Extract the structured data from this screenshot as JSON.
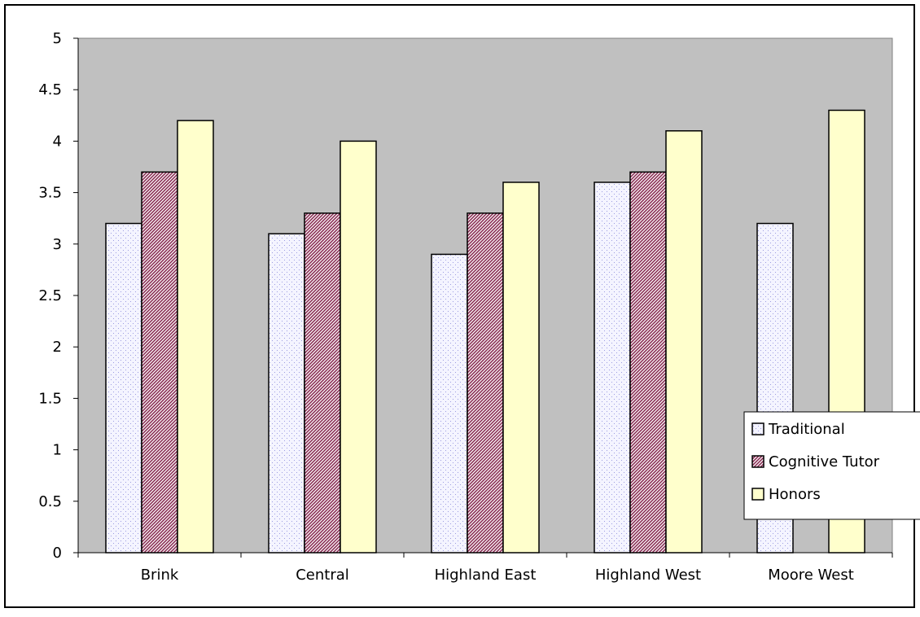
{
  "chart_data": {
    "type": "bar",
    "title": "",
    "xlabel": "",
    "ylabel": "",
    "categories": [
      "Brink",
      "Central",
      "Highland East",
      "Highland West",
      "Moore West"
    ],
    "series": [
      {
        "name": "Traditional",
        "values": [
          3.2,
          3.1,
          2.9,
          3.6,
          3.2
        ],
        "pattern": "dots",
        "color": "#f4f4ff",
        "pattern_color": "#9c9ce0"
      },
      {
        "name": "Cognitive Tutor",
        "values": [
          3.7,
          3.3,
          3.3,
          3.7,
          null
        ],
        "pattern": "diagonal-stripes",
        "color": "#ffffff",
        "pattern_color": "#8a2e55"
      },
      {
        "name": "Honors",
        "values": [
          4.2,
          4.0,
          3.6,
          4.1,
          4.3
        ],
        "pattern": "solid",
        "color": "#ffffcc",
        "pattern_color": "#ffffcc"
      }
    ],
    "ylim": [
      0,
      5
    ],
    "yticks": [
      "0",
      "0.5",
      "1",
      "1.5",
      "2",
      "2.5",
      "3",
      "3.5",
      "4",
      "4.5",
      "5"
    ],
    "grid": false,
    "plot_background": "#c0c0c0",
    "legend_position": "right"
  }
}
